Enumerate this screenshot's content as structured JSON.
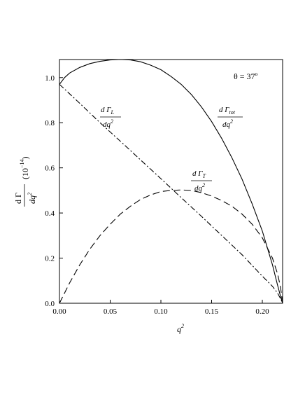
{
  "chart_data": {
    "type": "line",
    "annotation": "θ = 37º",
    "xlabel": "q",
    "xlabel_sup": "2",
    "ylabel": {
      "numerator": "d Γ",
      "denominator": "dq",
      "denominator_sup": "2",
      "unit_prefix": "(10",
      "unit_exponent": "−14",
      "unit_suffix": ")"
    },
    "xlim": [
      0,
      0.22
    ],
    "ylim": [
      0,
      1.08
    ],
    "x_ticks": [
      "0.00",
      "0.05",
      "0.10",
      "0.15",
      "0.20"
    ],
    "x_tick_values": [
      0,
      0.05,
      0.1,
      0.15,
      0.2
    ],
    "y_ticks": [
      "0.0",
      "0.2",
      "0.4",
      "0.6",
      "0.8",
      "1.0"
    ],
    "y_tick_values": [
      0,
      0.2,
      0.4,
      0.6,
      0.8,
      1.0
    ],
    "grid": false,
    "legend": "none",
    "series": [
      {
        "key": "tot",
        "style": "solid",
        "label": {
          "numerator": "d Γ",
          "subscript": "tot",
          "denominator": "dq",
          "denominator_sup": "2"
        },
        "x": [
          0,
          0.005,
          0.01,
          0.02,
          0.03,
          0.04,
          0.05,
          0.06,
          0.07,
          0.08,
          0.09,
          0.1,
          0.11,
          0.12,
          0.13,
          0.14,
          0.15,
          0.16,
          0.17,
          0.18,
          0.19,
          0.2,
          0.21,
          0.215,
          0.218,
          0.22
        ],
        "y": [
          0.97,
          1.0,
          1.02,
          1.045,
          1.062,
          1.072,
          1.078,
          1.08,
          1.078,
          1.07,
          1.055,
          1.035,
          1.005,
          0.97,
          0.925,
          0.87,
          0.805,
          0.73,
          0.645,
          0.55,
          0.44,
          0.32,
          0.17,
          0.08,
          0.03,
          0
        ]
      },
      {
        "key": "L",
        "style": "dashdot",
        "label": {
          "numerator": "d Γ",
          "subscript": "L",
          "denominator": "dq",
          "denominator_sup": "2"
        },
        "x": [
          0,
          0.02,
          0.04,
          0.06,
          0.08,
          0.1,
          0.12,
          0.14,
          0.16,
          0.18,
          0.2,
          0.21,
          0.215,
          0.218,
          0.22
        ],
        "y": [
          0.97,
          0.886,
          0.8,
          0.718,
          0.635,
          0.552,
          0.468,
          0.385,
          0.3,
          0.215,
          0.12,
          0.075,
          0.045,
          0.02,
          0
        ]
      },
      {
        "key": "T",
        "style": "dashed",
        "label": {
          "numerator": "d Γ",
          "subscript": "T",
          "denominator": "dq",
          "denominator_sup": "2"
        },
        "x": [
          0,
          0.01,
          0.02,
          0.03,
          0.04,
          0.05,
          0.06,
          0.07,
          0.08,
          0.09,
          0.1,
          0.11,
          0.12,
          0.13,
          0.14,
          0.15,
          0.16,
          0.17,
          0.18,
          0.19,
          0.2,
          0.21,
          0.215,
          0.218,
          0.22
        ],
        "y": [
          0,
          0.09,
          0.17,
          0.24,
          0.3,
          0.35,
          0.395,
          0.43,
          0.46,
          0.48,
          0.495,
          0.5,
          0.502,
          0.5,
          0.49,
          0.475,
          0.455,
          0.43,
          0.395,
          0.35,
          0.29,
          0.2,
          0.13,
          0.07,
          0
        ]
      }
    ]
  }
}
